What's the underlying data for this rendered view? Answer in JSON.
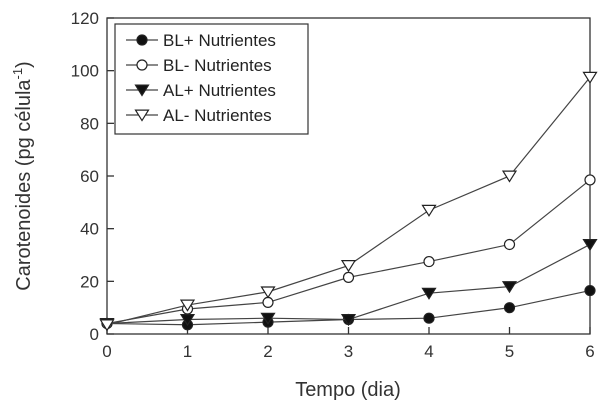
{
  "chart_data": {
    "type": "line",
    "xlabel": "Tempo (dia)",
    "ylabel": "Carotenoides (pg célula",
    "ylabel_superscript": "-1",
    "ylabel_close": ")",
    "xlim": [
      0,
      6
    ],
    "ylim": [
      0,
      120
    ],
    "xticks": [
      0,
      1,
      2,
      3,
      4,
      5,
      6
    ],
    "yticks": [
      0,
      20,
      40,
      60,
      80,
      100,
      120
    ],
    "grid": false,
    "legend_position": "top-left",
    "x": [
      0,
      1,
      2,
      3,
      4,
      5,
      6
    ],
    "series": [
      {
        "name": "BL+ Nutrientes",
        "marker": "filled-circle",
        "values": [
          4,
          3.5,
          4.5,
          5.5,
          6,
          10,
          16.5
        ]
      },
      {
        "name": "BL- Nutrientes",
        "marker": "open-circle",
        "values": [
          4,
          9.5,
          12,
          21.5,
          27.5,
          34,
          58.5
        ]
      },
      {
        "name": "AL+ Nutrientes",
        "marker": "filled-triangle-down",
        "values": [
          4,
          5.5,
          6,
          5.5,
          15.5,
          18,
          34
        ]
      },
      {
        "name": "AL- Nutrientes",
        "marker": "open-triangle-down",
        "values": [
          3.5,
          11,
          16,
          26,
          47,
          60,
          97.5
        ]
      }
    ]
  }
}
